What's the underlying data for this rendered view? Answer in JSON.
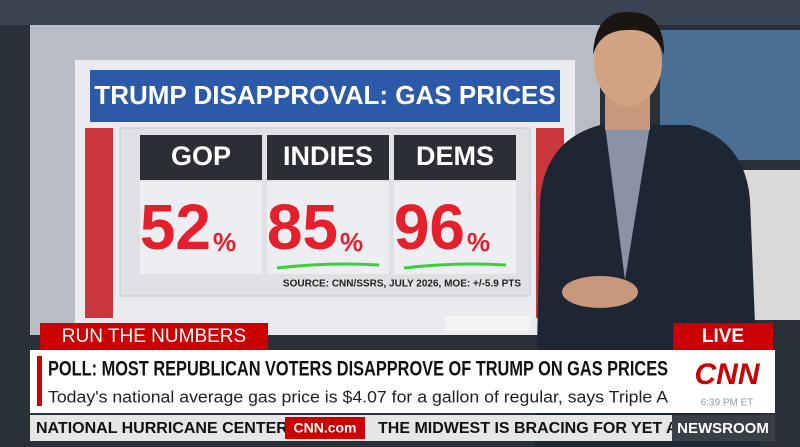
{
  "screen": {
    "title": "TRUMP DISAPPROVAL: GAS PRICES",
    "columns": [
      {
        "label": "GOP",
        "number": "52",
        "unit": "%"
      },
      {
        "label": "INDIES",
        "number": "85",
        "unit": "%"
      },
      {
        "label": "DEMS",
        "number": "96",
        "unit": "%"
      }
    ],
    "source": "SOURCE: CNN/SSRS, JULY 2026, MOE: +/-5.9 PTS"
  },
  "lower_third": {
    "tag": "RUN THE NUMBERS",
    "live": "LIVE",
    "headline": "POLL: MOST REPUBLICAN VOTERS DISAPPROVE OF TRUMP ON GAS PRICES",
    "subheadline": "Today's national average gas price is $4.07 for a gallon of regular, says Triple A",
    "logo": "CNN",
    "time": "6:39 PM ET"
  },
  "ticker": {
    "left": "NATIONAL HURRICANE CENTER.",
    "site": "CNN.com",
    "right": "THE MIDWEST IS BRACING FOR YET AN",
    "show": "NEWSROOM"
  }
}
